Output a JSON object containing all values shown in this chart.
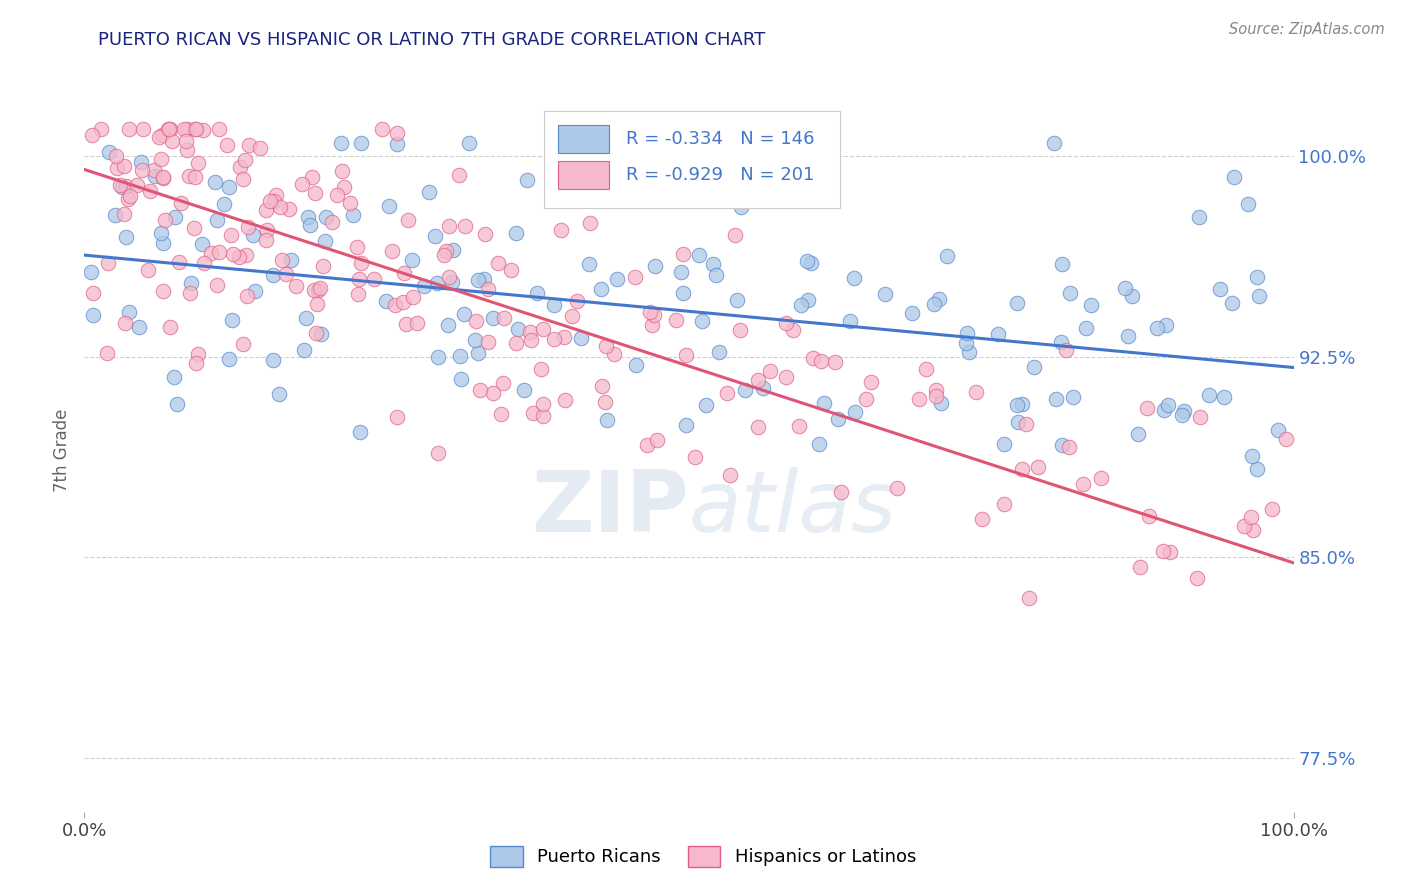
{
  "title": "PUERTO RICAN VS HISPANIC OR LATINO 7TH GRADE CORRELATION CHART",
  "title_color": "#1a237e",
  "source_text": "Source: ZipAtlas.com",
  "ylabel": "7th Grade",
  "xmin": 0.0,
  "xmax": 1.0,
  "ymin": 0.755,
  "ymax": 1.025,
  "yticks": [
    0.775,
    0.85,
    0.925,
    1.0
  ],
  "ytick_labels": [
    "77.5%",
    "85.0%",
    "92.5%",
    "100.0%"
  ],
  "xticks": [
    0.0,
    1.0
  ],
  "xtick_labels": [
    "0.0%",
    "100.0%"
  ],
  "blue_R": -0.334,
  "blue_N": 146,
  "pink_R": -0.929,
  "pink_N": 201,
  "blue_fill_color": "#adc8e8",
  "pink_fill_color": "#f5b8cc",
  "blue_edge_color": "#5588cc",
  "pink_edge_color": "#e06080",
  "blue_line_color": "#4477cc",
  "pink_line_color": "#e05575",
  "legend_label_blue": "Puerto Ricans",
  "legend_label_pink": "Hispanics or Latinos",
  "watermark_zip": "ZIP",
  "watermark_atlas": "atlas",
  "background_color": "#ffffff",
  "grid_color": "#cccccc",
  "blue_line_x0": 0.0,
  "blue_line_y0": 0.963,
  "blue_line_x1": 1.0,
  "blue_line_y1": 0.921,
  "pink_line_x0": 0.0,
  "pink_line_y0": 0.995,
  "pink_line_x1": 1.0,
  "pink_line_y1": 0.848,
  "blue_seed": 42,
  "pink_seed": 99
}
